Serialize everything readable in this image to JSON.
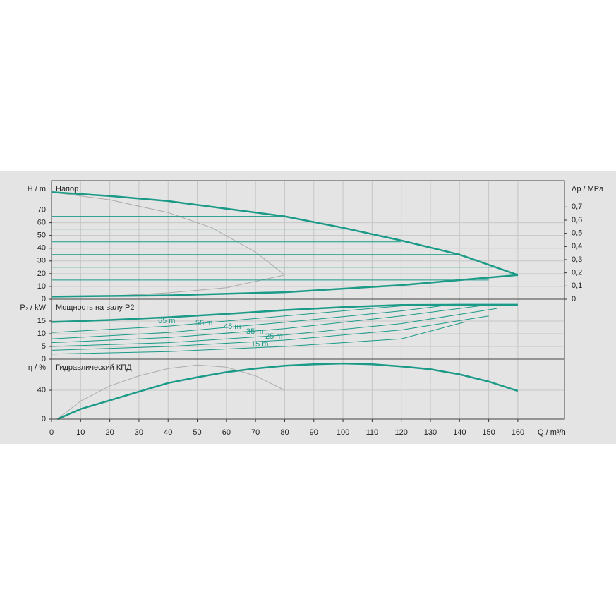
{
  "chart_data": [
    {
      "type": "line",
      "title": "Напор",
      "y_label": "H / m",
      "y2_label": "Δp / MPa",
      "xlim": [
        0,
        176
      ],
      "ylim": [
        0,
        93
      ],
      "yticks": [
        0,
        10,
        20,
        30,
        40,
        50,
        60,
        70
      ],
      "y2lim": [
        0,
        0.9
      ],
      "y2ticks": [
        0,
        {
          "value": 0.1,
          "label": "0,1"
        },
        {
          "value": 0.2,
          "label": "0,2"
        },
        {
          "value": 0.3,
          "label": "0,3"
        },
        {
          "value": 0.4,
          "label": "0,4"
        },
        {
          "value": 0.5,
          "label": "0,5"
        },
        {
          "value": 0.6,
          "label": "0,6"
        },
        {
          "value": 0.7,
          "label": "0,7"
        }
      ],
      "grid": true,
      "series": [
        {
          "color": "#aaaaaa",
          "line_width": 1,
          "x": [
            0,
            20,
            40,
            55,
            70,
            80
          ],
          "values": [
            84,
            78,
            68,
            56,
            37,
            19
          ]
        },
        {
          "color": "#aaaaaa",
          "line_width": 1,
          "x": [
            0,
            20,
            40,
            60,
            80
          ],
          "values": [
            2,
            2.5,
            5,
            9,
            19
          ]
        },
        {
          "color": "#1a9a87",
          "line_width": 1,
          "x": [
            0,
            80
          ],
          "values": [
            65,
            65
          ]
        },
        {
          "color": "#1a9a87",
          "line_width": 1,
          "x": [
            0,
            103
          ],
          "values": [
            55,
            55
          ]
        },
        {
          "color": "#1a9a87",
          "line_width": 1,
          "x": [
            0,
            120
          ],
          "values": [
            45,
            45
          ]
        },
        {
          "color": "#1a9a87",
          "line_width": 1,
          "x": [
            0,
            139
          ],
          "values": [
            35,
            35
          ]
        },
        {
          "color": "#1a9a87",
          "line_width": 1,
          "x": [
            0,
            152
          ],
          "values": [
            25,
            25
          ]
        },
        {
          "color": "#1a9a87",
          "line_width": 1,
          "x": [
            0,
            150
          ],
          "values": [
            15,
            15
          ]
        },
        {
          "color": "#1a9a87",
          "line_width": 2.5,
          "x": [
            0,
            20,
            40,
            60,
            80,
            100,
            120,
            140,
            160
          ],
          "values": [
            84,
            81,
            77,
            71,
            65,
            56,
            46,
            35,
            19
          ]
        },
        {
          "color": "#1a9a87",
          "line_width": 2.5,
          "x": [
            0,
            40,
            80,
            120,
            160
          ],
          "values": [
            2,
            3,
            5.5,
            11,
            19
          ]
        }
      ]
    },
    {
      "type": "line",
      "title": "Мощность на валу P2",
      "y_label": "P₂ / kW",
      "xlim": [
        0,
        176
      ],
      "ylim": [
        0,
        23.6
      ],
      "yticks": [
        0,
        5,
        10,
        15
      ],
      "grid": true,
      "series": [
        {
          "name": "65 m",
          "color": "#1a9a87",
          "line_width": 1,
          "x": [
            0,
            40,
            80,
            110,
            125
          ],
          "values": [
            10.5,
            13,
            17,
            20,
            21.4
          ]
        },
        {
          "name": "55 m",
          "color": "#1a9a87",
          "line_width": 1,
          "x": [
            0,
            40,
            80,
            120,
            137
          ],
          "values": [
            8,
            10.5,
            14.5,
            19,
            21.4
          ]
        },
        {
          "name": "45 m",
          "color": "#1a9a87",
          "line_width": 1,
          "x": [
            0,
            40,
            80,
            120,
            150
          ],
          "values": [
            6.5,
            8.5,
            12,
            17,
            21.4
          ]
        },
        {
          "name": "35 m",
          "color": "#1a9a87",
          "line_width": 1,
          "x": [
            0,
            40,
            80,
            120,
            153
          ],
          "values": [
            5,
            6.5,
            9.5,
            14,
            20
          ]
        },
        {
          "name": "25 m",
          "color": "#1a9a87",
          "line_width": 1,
          "x": [
            0,
            40,
            80,
            120,
            150
          ],
          "values": [
            3.5,
            5,
            7.5,
            11.5,
            17
          ]
        },
        {
          "name": "15 m",
          "color": "#1a9a87",
          "line_width": 1,
          "x": [
            0,
            40,
            80,
            120,
            142
          ],
          "values": [
            2,
            3,
            5,
            8,
            14.7
          ]
        },
        {
          "color": "#1a9a87",
          "line_width": 2.5,
          "x": [
            0,
            20,
            40,
            60,
            80,
            100,
            120,
            140,
            160
          ],
          "values": [
            14.6,
            15.4,
            16.5,
            17.8,
            19.3,
            20.5,
            21.3,
            21.4,
            21.4
          ]
        }
      ]
    },
    {
      "type": "line",
      "title": "Гидравлический КПД",
      "y_label": "η / %",
      "x_label": "Q / m³/h",
      "xlim": [
        0,
        176
      ],
      "ylim": [
        0,
        83
      ],
      "yticks": [
        0,
        40
      ],
      "xticks": [
        0,
        10,
        20,
        30,
        40,
        50,
        60,
        70,
        80,
        90,
        100,
        110,
        120,
        130,
        140,
        150,
        160
      ],
      "grid": true,
      "series": [
        {
          "color": "#aaaaaa",
          "line_width": 1,
          "x": [
            2,
            10,
            20,
            30,
            40,
            50,
            60,
            70,
            80
          ],
          "values": [
            0,
            25,
            46,
            60,
            70,
            75,
            72,
            60,
            40
          ]
        },
        {
          "color": "#1a9a87",
          "line_width": 2.5,
          "x": [
            2,
            10,
            20,
            30,
            40,
            50,
            60,
            70,
            80,
            90,
            100,
            110,
            120,
            130,
            140,
            150,
            160
          ],
          "values": [
            0,
            14,
            26,
            38,
            50,
            58,
            65,
            70,
            74,
            76,
            77,
            76,
            73,
            69,
            62,
            52,
            39
          ]
        }
      ]
    }
  ]
}
